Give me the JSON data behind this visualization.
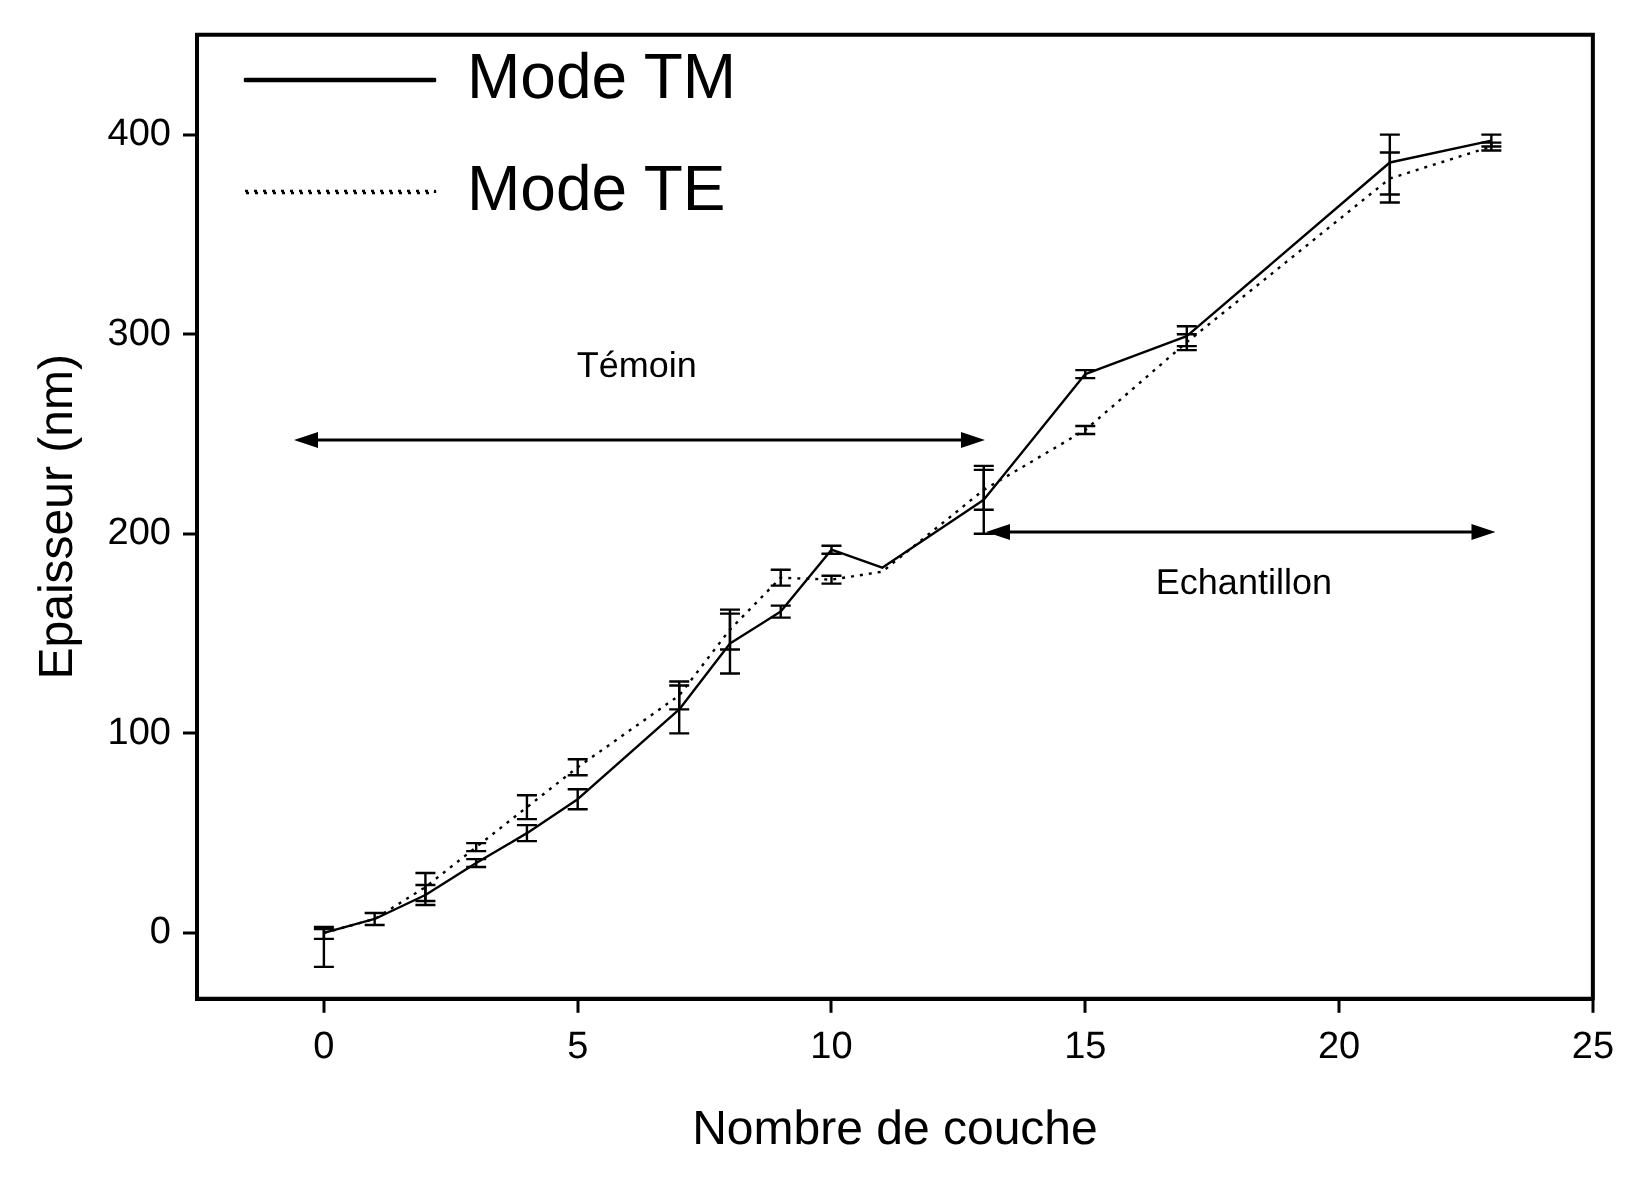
{
  "chart_data": {
    "type": "line",
    "xlabel": "Nombre de couche",
    "ylabel": "Epaisseur (nm)",
    "xlim": [
      -2.5,
      25
    ],
    "xticks": [
      0,
      5,
      10,
      15,
      20,
      25
    ],
    "ylim": [
      -33,
      450
    ],
    "yticks": [
      0,
      100,
      200,
      300,
      400
    ],
    "grid": false,
    "legend": "top left",
    "marker": "none",
    "series": [
      {
        "name": "Mode TM",
        "color": "#000000",
        "line_style": "solid",
        "x": [
          0,
          1,
          2,
          3,
          4,
          5,
          7,
          8,
          9,
          10,
          11,
          13,
          15,
          17,
          21,
          23
        ],
        "values": [
          0,
          7,
          19,
          35,
          50,
          67,
          112,
          145,
          161,
          192,
          183,
          217,
          280,
          299,
          386,
          397
        ],
        "errors": [
          [
            -17,
            2
          ],
          3,
          5,
          2,
          4,
          5,
          12,
          15,
          3,
          2,
          null,
          17,
          2,
          5,
          [
            366,
            400
          ],
          3
        ]
      },
      {
        "name": "Mode TE",
        "color": "#000000",
        "line_style": "dotted",
        "x": [
          0,
          1,
          2,
          3,
          4,
          5,
          7,
          8,
          9,
          10,
          11,
          13,
          15,
          17,
          21,
          23
        ],
        "values": [
          0,
          7,
          23,
          43,
          63,
          83,
          119,
          152,
          178,
          177,
          181,
          222,
          252,
          296,
          378,
          394
        ],
        "errors": [
          3,
          null,
          7,
          2,
          6,
          4,
          7,
          10,
          4,
          2,
          null,
          10,
          2,
          4,
          [
            370,
            391
          ],
          2
        ]
      }
    ],
    "annotations": [
      "Témoin",
      "Echantillon"
    ]
  }
}
